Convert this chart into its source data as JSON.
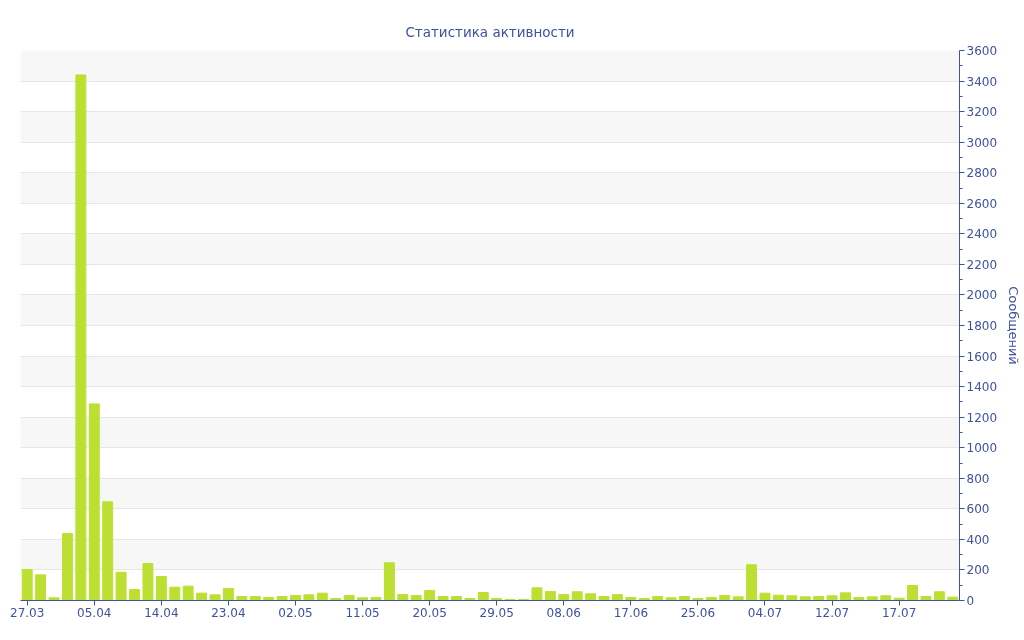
{
  "chart_data": {
    "type": "bar",
    "title": "Статистика активности",
    "ylabel": "Сообщений",
    "categories": [
      "27.03",
      null,
      null,
      null,
      null,
      "05.04",
      null,
      null,
      null,
      null,
      "14.04",
      null,
      null,
      null,
      null,
      "23.04",
      null,
      null,
      null,
      null,
      "02.05",
      null,
      null,
      null,
      null,
      "11.05",
      null,
      null,
      null,
      null,
      "20.05",
      null,
      null,
      null,
      null,
      "29.05",
      null,
      null,
      null,
      null,
      "08.06",
      null,
      null,
      null,
      null,
      "17.06",
      null,
      null,
      null,
      null,
      "25.06",
      null,
      null,
      null,
      null,
      "04.07",
      null,
      null,
      null,
      null,
      "12.07",
      null,
      null,
      null,
      null,
      "17.07",
      null,
      null,
      null,
      null
    ],
    "values": [
      203,
      168,
      18,
      438,
      3440,
      1287,
      646,
      185,
      72,
      242,
      157,
      87,
      94,
      48,
      37,
      79,
      26,
      26,
      20,
      26,
      33,
      37,
      48,
      13,
      33,
      18,
      20,
      247,
      39,
      33,
      65,
      26,
      26,
      13,
      52,
      13,
      7,
      7,
      83,
      59,
      39,
      57,
      44,
      26,
      39,
      20,
      13,
      26,
      18,
      26,
      13,
      20,
      33,
      24,
      234,
      48,
      35,
      31,
      24,
      26,
      31,
      50,
      20,
      24,
      31,
      15,
      98,
      26,
      57,
      22
    ],
    "color": "#bce032",
    "ylim": [
      0,
      3600
    ],
    "yticks": [
      0,
      200,
      400,
      600,
      800,
      1000,
      1200,
      1400,
      1600,
      1800,
      2000,
      2200,
      2400,
      2600,
      2800,
      3000,
      3200,
      3400,
      3600
    ],
    "grid": "y"
  }
}
